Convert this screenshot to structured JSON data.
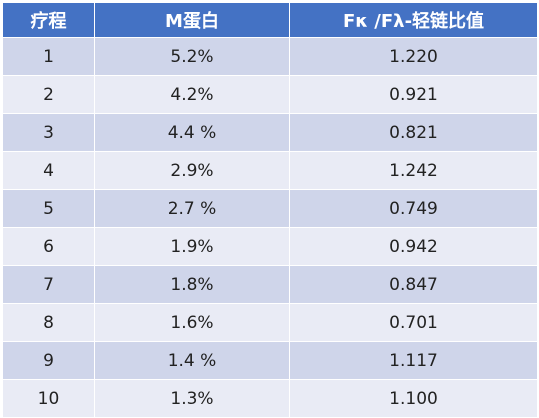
{
  "headers": [
    "疗程",
    "M蛋白",
    "Fκ /Fλ-轻链比值"
  ],
  "rows": [
    [
      "1",
      "5.2%",
      "1.220"
    ],
    [
      "2",
      "4.2%",
      "0.921"
    ],
    [
      "3",
      "4.4 %",
      "0.821"
    ],
    [
      "4",
      "2.9%",
      "1.242"
    ],
    [
      "5",
      "2.7 %",
      "0.749"
    ],
    [
      "6",
      "1.9%",
      "0.942"
    ],
    [
      "7",
      "1.8%",
      "0.847"
    ],
    [
      "8",
      "1.6%",
      "0.701"
    ],
    [
      "9",
      "1.4 %",
      "1.117"
    ],
    [
      "10",
      "1.3%",
      "1.100"
    ]
  ],
  "colors": {
    "header_bg": "#4472c4",
    "row_dark": "#cfd5ea",
    "row_light": "#e9ebf5"
  }
}
